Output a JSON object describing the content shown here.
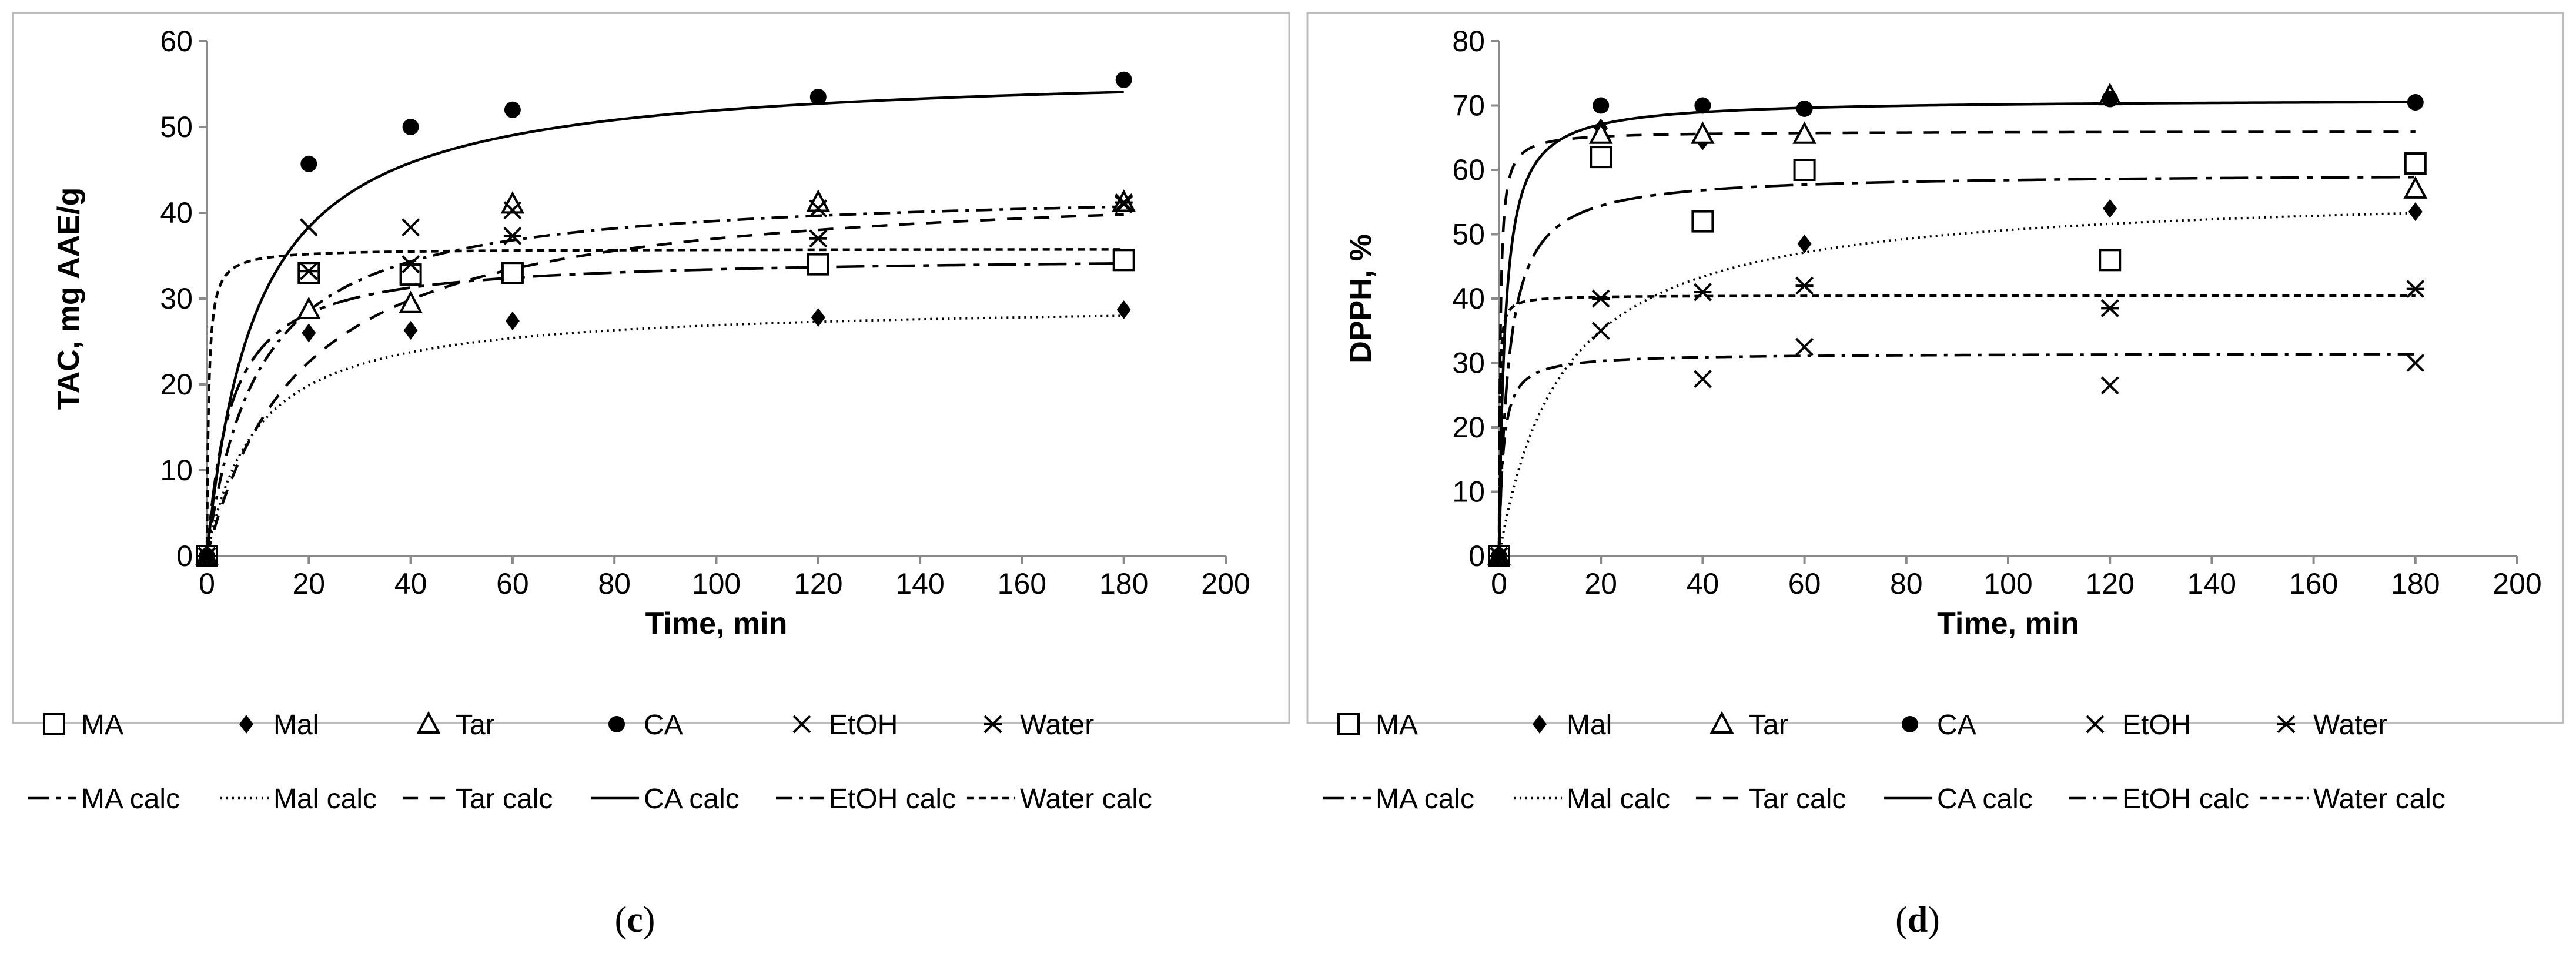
{
  "chart_data": [
    {
      "type": "scatter",
      "panel_label": {
        "open": "(",
        "letter": "c",
        "close": ")"
      },
      "xlabel": "Time, min",
      "ylabel": "TAC, mg AAE/g",
      "xlim": [
        0,
        200
      ],
      "ylim": [
        0,
        60
      ],
      "xticks": [
        0,
        20,
        40,
        60,
        80,
        100,
        120,
        140,
        160,
        180,
        200
      ],
      "yticks": [
        0,
        10,
        20,
        30,
        40,
        50,
        60
      ],
      "grid": false,
      "legend_placement": "bottom",
      "series": [
        {
          "name": "MA",
          "marker": "open-square",
          "x": [
            0,
            20,
            40,
            60,
            120,
            180
          ],
          "y": [
            0,
            33,
            32.8,
            33,
            34,
            34.5
          ]
        },
        {
          "name": "Mal",
          "marker": "diamond",
          "x": [
            0,
            20,
            40,
            60,
            120,
            180
          ],
          "y": [
            0,
            26,
            26.3,
            27.4,
            27.8,
            28.7
          ]
        },
        {
          "name": "Tar",
          "marker": "open-triangle",
          "x": [
            0,
            20,
            40,
            60,
            120,
            180
          ],
          "y": [
            0,
            28.7,
            29.4,
            41,
            41.2,
            41.2
          ]
        },
        {
          "name": "CA",
          "marker": "circle",
          "x": [
            0,
            20,
            40,
            60,
            120,
            180
          ],
          "y": [
            0,
            45.7,
            50,
            52,
            53.5,
            55.5
          ]
        },
        {
          "name": "EtOH",
          "marker": "x",
          "x": [
            0,
            20,
            40,
            60,
            120,
            180
          ],
          "y": [
            0,
            38.3,
            38.3,
            40.3,
            40.5,
            41
          ]
        },
        {
          "name": "Water",
          "marker": "asterisk",
          "x": [
            0,
            20,
            40,
            60,
            120,
            180
          ],
          "y": [
            0,
            33.2,
            34,
            37.3,
            37,
            41.2
          ]
        }
      ],
      "fits": [
        {
          "name": "MA calc",
          "dash": "long-dash",
          "ce": 35,
          "k": 0.006
        },
        {
          "name": "Mal calc",
          "dash": "dotted",
          "ce": 29.5,
          "k": 0.0035
        },
        {
          "name": "Tar calc",
          "dash": "dash",
          "ce": 44,
          "k": 0.0012
        },
        {
          "name": "CA calc",
          "dash": "solid",
          "ce": 57,
          "k": 0.0018
        },
        {
          "name": "EtOH calc",
          "dash": "dash-dot",
          "ce": 43,
          "k": 0.0023
        },
        {
          "name": "Water calc",
          "dash": "short-dash",
          "ce": 35.8,
          "k": 0.08
        }
      ]
    },
    {
      "type": "scatter",
      "panel_label": {
        "open": "(",
        "letter": "d",
        "close": ")"
      },
      "xlabel": "Time, min",
      "ylabel": "DPPH, %",
      "xlim": [
        0,
        200
      ],
      "ylim": [
        0,
        80
      ],
      "xticks": [
        0,
        20,
        40,
        60,
        80,
        100,
        120,
        140,
        160,
        180,
        200
      ],
      "yticks": [
        0,
        10,
        20,
        30,
        40,
        50,
        60,
        70,
        80
      ],
      "grid": false,
      "legend_placement": "bottom",
      "series": [
        {
          "name": "MA",
          "marker": "open-square",
          "x": [
            0,
            20,
            40,
            60,
            120,
            180
          ],
          "y": [
            0,
            62,
            52,
            60,
            46,
            61
          ]
        },
        {
          "name": "Mal",
          "marker": "diamond",
          "x": [
            0,
            20,
            40,
            60,
            120,
            180
          ],
          "y": [
            0,
            66.5,
            64.5,
            48.5,
            54,
            53.5
          ]
        },
        {
          "name": "Tar",
          "marker": "open-triangle",
          "x": [
            0,
            20,
            40,
            60,
            120,
            180
          ],
          "y": [
            0,
            65.5,
            65.5,
            65.5,
            71.5,
            57
          ]
        },
        {
          "name": "CA",
          "marker": "circle",
          "x": [
            0,
            20,
            40,
            60,
            120,
            180
          ],
          "y": [
            0,
            70,
            70,
            69.5,
            71,
            70.5
          ]
        },
        {
          "name": "EtOH",
          "marker": "x",
          "x": [
            0,
            20,
            40,
            60,
            120,
            180
          ],
          "y": [
            0,
            35,
            27.5,
            32.5,
            26.5,
            30
          ]
        },
        {
          "name": "Water",
          "marker": "asterisk",
          "x": [
            0,
            20,
            40,
            60,
            120,
            180
          ],
          "y": [
            0,
            40,
            41,
            42,
            38.5,
            41.5
          ]
        }
      ],
      "fits": [
        {
          "name": "MA calc",
          "dash": "long-dash",
          "ce": 59.5,
          "k": 0.009
        },
        {
          "name": "Mal calc",
          "dash": "dotted",
          "ce": 57,
          "k": 0.0014
        },
        {
          "name": "Tar calc",
          "dash": "dash",
          "ce": 66,
          "k": 0.06
        },
        {
          "name": "CA calc",
          "dash": "solid",
          "ce": 71,
          "k": 0.012
        },
        {
          "name": "EtOH calc",
          "dash": "dash-dot",
          "ce": 31.5,
          "k": 0.04
        },
        {
          "name": "Water calc",
          "dash": "short-dash",
          "ce": 40.5,
          "k": 0.2
        }
      ]
    }
  ]
}
